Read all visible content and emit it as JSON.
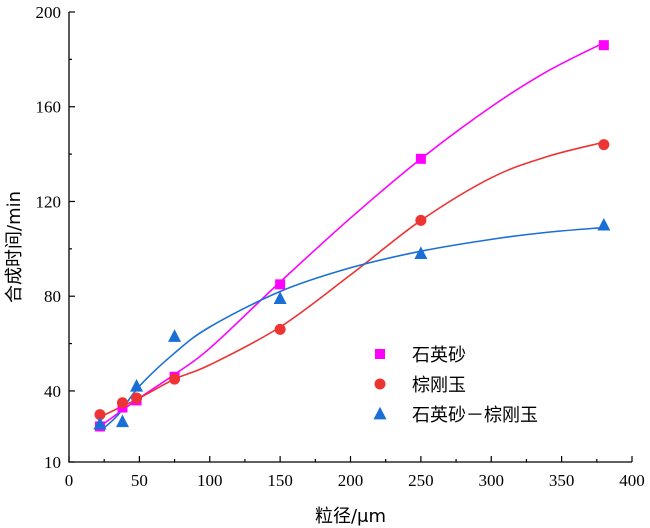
{
  "chart_data": {
    "type": "scatter",
    "xlabel": "粒径/μm",
    "ylabel": "合成时间/min",
    "xlim": [
      0,
      400
    ],
    "ylim": [
      10,
      200
    ],
    "xticks": [
      0,
      50,
      100,
      150,
      200,
      250,
      300,
      350,
      400
    ],
    "yticks": [
      10,
      40,
      80,
      120,
      160,
      200
    ],
    "legend_position": "lower-right",
    "series": [
      {
        "name": "石英砂",
        "marker": "square",
        "color": "#ff00ff",
        "points": [
          [
            22,
            25
          ],
          [
            38,
            33
          ],
          [
            48,
            36
          ],
          [
            75,
            46
          ],
          [
            150,
            85
          ],
          [
            250,
            138
          ],
          [
            380,
            186
          ]
        ],
        "fit_curve": [
          [
            22,
            25
          ],
          [
            50,
            37
          ],
          [
            75,
            47
          ],
          [
            100,
            58
          ],
          [
            150,
            86
          ],
          [
            200,
            113
          ],
          [
            250,
            138
          ],
          [
            300,
            160
          ],
          [
            340,
            175
          ],
          [
            380,
            187
          ]
        ]
      },
      {
        "name": "棕刚玉",
        "marker": "circle",
        "color": "#ee3333",
        "points": [
          [
            22,
            30
          ],
          [
            38,
            35
          ],
          [
            48,
            37
          ],
          [
            75,
            45
          ],
          [
            150,
            66
          ],
          [
            250,
            112
          ],
          [
            380,
            144
          ]
        ],
        "fit_curve": [
          [
            22,
            29
          ],
          [
            50,
            37
          ],
          [
            75,
            45
          ],
          [
            100,
            51
          ],
          [
            150,
            67
          ],
          [
            200,
            89
          ],
          [
            250,
            112
          ],
          [
            300,
            130
          ],
          [
            340,
            139
          ],
          [
            380,
            145
          ]
        ]
      },
      {
        "name": "石英砂－棕刚玉",
        "marker": "triangle",
        "color": "#1a6fd6",
        "points": [
          [
            22,
            26
          ],
          [
            38,
            27
          ],
          [
            48,
            42
          ],
          [
            75,
            63
          ],
          [
            150,
            79
          ],
          [
            250,
            98
          ],
          [
            380,
            110
          ]
        ],
        "fit_curve": [
          [
            22,
            23
          ],
          [
            35,
            30
          ],
          [
            50,
            42
          ],
          [
            75,
            56
          ],
          [
            100,
            67
          ],
          [
            150,
            82
          ],
          [
            200,
            92
          ],
          [
            250,
            99
          ],
          [
            300,
            104
          ],
          [
            340,
            107
          ],
          [
            380,
            109
          ]
        ]
      }
    ]
  }
}
